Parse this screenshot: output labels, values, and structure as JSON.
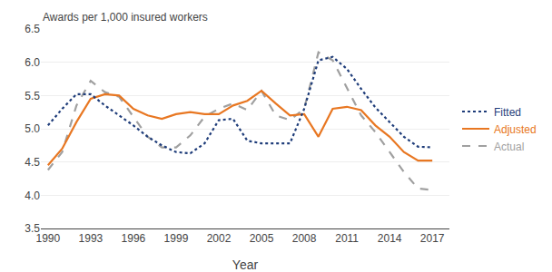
{
  "chart_data": {
    "type": "line",
    "xlabel": "Year",
    "ylabel": "Awards per 1,000 insured workers",
    "x": [
      1990,
      1991,
      1992,
      1993,
      1994,
      1995,
      1996,
      1997,
      1998,
      1999,
      2000,
      2001,
      2002,
      2003,
      2004,
      2005,
      2006,
      2007,
      2008,
      2009,
      2010,
      2011,
      2012,
      2013,
      2014,
      2015,
      2016,
      2017
    ],
    "series": [
      {
        "name": "Fitted",
        "color": "#1f3d7a",
        "line_style": "dotted",
        "values": [
          5.05,
          5.3,
          5.52,
          5.52,
          5.35,
          5.2,
          5.05,
          4.88,
          4.75,
          4.65,
          4.63,
          4.78,
          5.13,
          5.15,
          4.82,
          4.78,
          4.78,
          4.78,
          5.3,
          6.03,
          6.08,
          5.9,
          5.6,
          5.32,
          5.1,
          4.88,
          4.73,
          4.72
        ]
      },
      {
        "name": "Adjusted",
        "color": "#e87722",
        "line_style": "solid",
        "values": [
          4.45,
          4.7,
          5.1,
          5.45,
          5.52,
          5.5,
          5.3,
          5.2,
          5.15,
          5.22,
          5.25,
          5.22,
          5.22,
          5.35,
          5.42,
          5.57,
          5.38,
          5.2,
          5.22,
          4.88,
          5.3,
          5.33,
          5.28,
          5.05,
          4.88,
          4.65,
          4.52,
          4.52
        ]
      },
      {
        "name": "Actual",
        "color": "#a0a0a0",
        "line_style": "dashed",
        "values": [
          4.38,
          4.65,
          5.35,
          5.72,
          5.55,
          5.48,
          5.18,
          4.88,
          4.72,
          4.72,
          4.9,
          5.18,
          5.3,
          5.38,
          5.28,
          5.57,
          5.2,
          5.13,
          5.3,
          6.15,
          6.03,
          5.62,
          5.2,
          4.95,
          4.65,
          4.35,
          4.1,
          4.08
        ]
      }
    ],
    "xlim": [
      1989.5,
      2018.2
    ],
    "xticks": [
      1990,
      1993,
      1996,
      1999,
      2002,
      2005,
      2008,
      2011,
      2014,
      2017
    ],
    "ylim": [
      3.5,
      6.5
    ],
    "yticks": [
      {
        "value": 3.5,
        "label": "3.5"
      },
      {
        "value": 4.0,
        "label": "4.0"
      },
      {
        "value": 4.5,
        "label": "4.5"
      },
      {
        "value": 5.0,
        "label": "5.0"
      },
      {
        "value": 5.5,
        "label": "5.5"
      },
      {
        "value": 6.0,
        "label": "6.0"
      },
      {
        "value": 6.5,
        "label": "6.5"
      }
    ],
    "grid": "y",
    "legend": "right"
  }
}
